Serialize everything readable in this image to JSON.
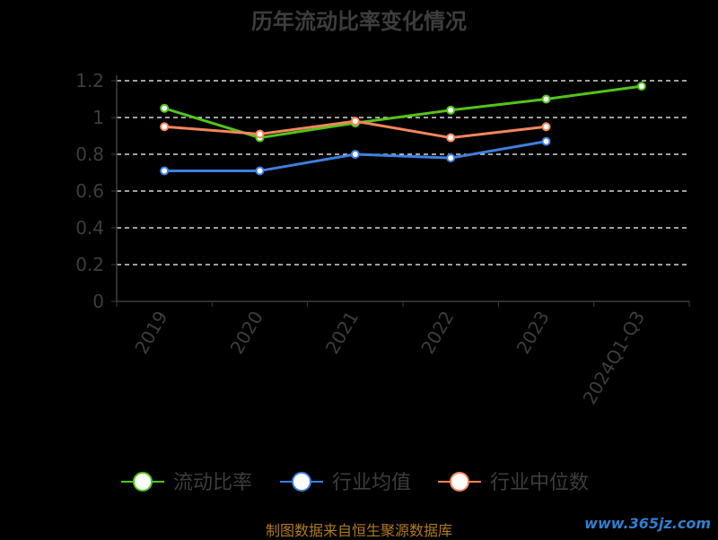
{
  "chart_data": {
    "type": "line",
    "title": "历年流动比率变化情况",
    "categories": [
      "2019",
      "2020",
      "2021",
      "2022",
      "2023",
      "2024Q1-Q3"
    ],
    "ylim": [
      0,
      1.2
    ],
    "yticks": [
      "0",
      "0.2",
      "0.4",
      "0.6",
      "0.8",
      "1",
      "1.2"
    ],
    "grid": true,
    "legend_position": "bottom",
    "series": [
      {
        "name": "流动比率",
        "color": "#52c41a",
        "values": [
          1.05,
          0.89,
          0.97,
          1.04,
          1.1,
          1.17
        ]
      },
      {
        "name": "行业均值",
        "color": "#3f7fe0",
        "values": [
          0.71,
          0.71,
          0.8,
          0.78,
          0.87,
          null
        ]
      },
      {
        "name": "行业中位数",
        "color": "#f5875a",
        "values": [
          0.95,
          0.91,
          0.98,
          0.89,
          0.95,
          null
        ]
      }
    ]
  },
  "footer": {
    "source": "制图数据来自恒生聚源数据库",
    "watermark": "www.365jz.com"
  }
}
